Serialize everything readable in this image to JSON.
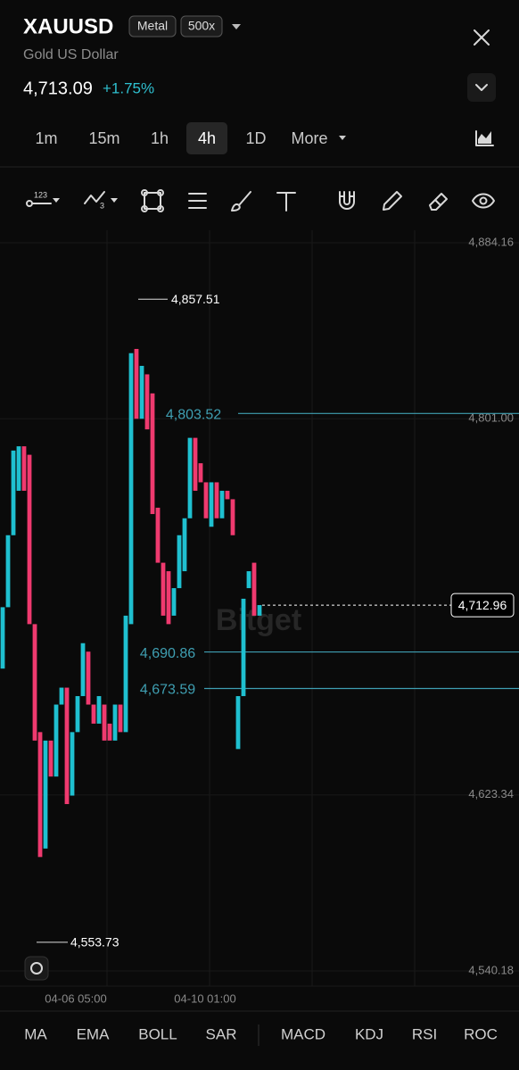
{
  "header": {
    "symbol": "XAUUSD",
    "tags": [
      "Metal",
      "500x"
    ],
    "name": "Gold US Dollar",
    "price": "4,713.09",
    "change": "+1.75%"
  },
  "timeframes": {
    "items": [
      "1m",
      "15m",
      "1h",
      "4h",
      "1D",
      "More"
    ],
    "active": 3
  },
  "toolbar": {
    "subscripts": [
      "123",
      "3"
    ]
  },
  "chart_data": {
    "type": "candlestick",
    "up_color": "#1fc0d0",
    "down_color": "#ef3a6f",
    "open": [
      4683,
      4712,
      4746,
      4767,
      4788,
      4784,
      4704,
      4653,
      4598,
      4649,
      4632,
      4666,
      4674,
      4623,
      4653,
      4670,
      4691,
      4666,
      4657,
      4666,
      4657,
      4649,
      4666,
      4653,
      4704,
      4834,
      4801,
      4822,
      4813,
      4759,
      4733,
      4729,
      4708,
      4721,
      4729,
      4754,
      4792,
      4780,
      4771,
      4750,
      4771,
      4754,
      4767,
      4763,
      4645,
      4670,
      4721,
      4733,
      4708
    ],
    "high": {
      "value": 4857.51,
      "label": "4,857.51"
    },
    "low": {
      "value": 4553.73,
      "label": "4,553.73"
    },
    "close": [
      4712,
      4746,
      4786,
      4788,
      4767,
      4704,
      4649,
      4594,
      4649,
      4632,
      4666,
      4674,
      4619,
      4653,
      4670,
      4695,
      4666,
      4657,
      4670,
      4649,
      4649,
      4666,
      4653,
      4708,
      4832,
      4801,
      4826,
      4796,
      4756,
      4733,
      4708,
      4704,
      4721,
      4746,
      4754,
      4792,
      4767,
      4771,
      4754,
      4771,
      4754,
      4767,
      4763,
      4746,
      4670,
      4716,
      4729,
      4708,
      4713
    ],
    "ylim": [
      4540.18,
      4884.16
    ],
    "yticks": [
      {
        "value": 4884.16,
        "label": "4,884.16"
      },
      {
        "value": 4801.0,
        "label": "4,801.00"
      },
      {
        "value": 4623.34,
        "label": "4,623.34"
      },
      {
        "value": 4540.18,
        "label": "4,540.18"
      }
    ],
    "x_labels": [
      "04-06 05:00",
      "04-10 01:00"
    ],
    "levels": [
      {
        "value": 4803.52,
        "label": "4,803.52"
      },
      {
        "value": 4690.86,
        "label": "4,690.86"
      },
      {
        "value": 4673.59,
        "label": "4,673.59"
      }
    ],
    "level_color": "#3f9fb2",
    "last_price": {
      "value": 4712.96,
      "label": "4,712.96"
    },
    "watermark": "Bitget"
  },
  "indicators": [
    "MA",
    "EMA",
    "BOLL",
    "SAR",
    "MACD",
    "KDJ",
    "RSI",
    "ROC"
  ]
}
